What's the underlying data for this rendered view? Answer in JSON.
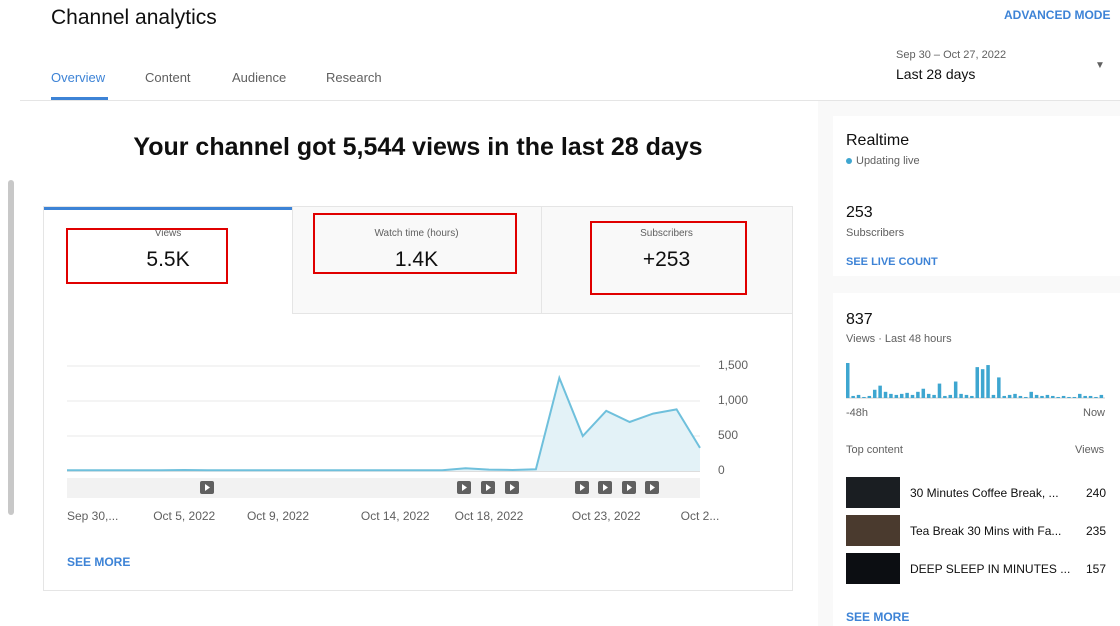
{
  "header": {
    "title": "Channel analytics",
    "advanced_mode": "ADVANCED MODE",
    "tabs": [
      "Overview",
      "Content",
      "Audience",
      "Research"
    ],
    "date_range": "Sep 30 – Oct 27, 2022",
    "period": "Last 28 days"
  },
  "headline": "Your channel got 5,544 views in the last 28 days",
  "metrics": [
    {
      "label": "Views",
      "value": "5.5K"
    },
    {
      "label": "Watch time (hours)",
      "value": "1.4K"
    },
    {
      "label": "Subscribers",
      "value": "+253"
    }
  ],
  "views_chart": {
    "type": "line",
    "color": "#6fc0dc",
    "categories": [
      "Sep 30,...",
      null,
      null,
      null,
      null,
      "Oct 5, 2022",
      null,
      null,
      null,
      "Oct 9, 2022",
      null,
      null,
      null,
      null,
      "Oct 14, 2022",
      null,
      null,
      null,
      "Oct 18, 2022",
      null,
      null,
      null,
      null,
      "Oct 23, 2022",
      null,
      null,
      null,
      "Oct 2..."
    ],
    "values": [
      10,
      10,
      10,
      10,
      10,
      15,
      10,
      10,
      10,
      10,
      10,
      10,
      10,
      10,
      10,
      10,
      10,
      40,
      20,
      15,
      25,
      1330,
      500,
      860,
      700,
      820,
      880,
      330
    ],
    "ylim": [
      0,
      1500
    ],
    "yticks": [
      0,
      500,
      {
        "value": 1000,
        "label": "1,000"
      },
      {
        "value": 1500,
        "label": "1,500"
      }
    ],
    "grid": true
  },
  "see_more": "SEE MORE",
  "realtime": {
    "title": "Realtime",
    "status": "Updating live",
    "subscribers": "253",
    "subscribers_label": "Subscribers",
    "live_count": "SEE LIVE COUNT",
    "views": "837",
    "views_label": "Views · Last 48 hours",
    "views_chart": {
      "type": "bar",
      "color": "#3ea6d0",
      "values": [
        34,
        2,
        3,
        1,
        2,
        8,
        12,
        6,
        4,
        3,
        4,
        5,
        3,
        6,
        9,
        4,
        3,
        14,
        2,
        3,
        16,
        4,
        3,
        2,
        30,
        28,
        32,
        3,
        20,
        2,
        3,
        4,
        2,
        1,
        6,
        3,
        2,
        3,
        2,
        1,
        2,
        1,
        1,
        4,
        2,
        2,
        1,
        3
      ],
      "start_label": "-48h",
      "end_label": "Now"
    },
    "top_content": "Top content",
    "views_header": "Views",
    "items": [
      {
        "title": "30 Minutes Coffee Break, ...",
        "views": "240"
      },
      {
        "title": "Tea Break 30 Mins with Fa...",
        "views": "235"
      },
      {
        "title": "DEEP SLEEP IN MINUTES ...",
        "views": "157"
      }
    ],
    "see_more": "SEE MORE"
  }
}
